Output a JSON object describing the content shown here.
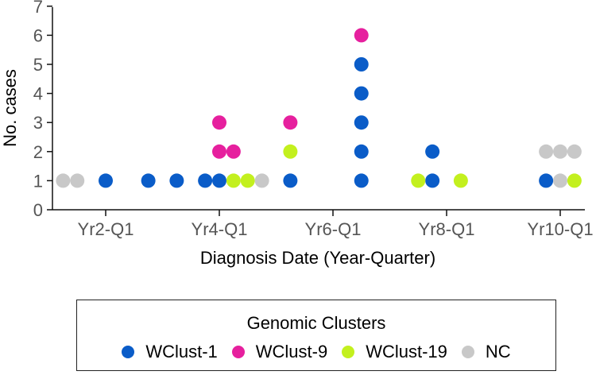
{
  "chart_data": {
    "type": "scatter",
    "subtype": "stacked-dot-plot",
    "title": "",
    "xlabel": "Diagnosis Date (Year-Quarter)",
    "ylabel": "No. cases",
    "ylim": [
      0,
      7
    ],
    "yticks": [
      0,
      1,
      2,
      3,
      4,
      5,
      6,
      7
    ],
    "xticks": [
      "Yr2-Q1",
      "Yr4-Q1",
      "Yr6-Q1",
      "Yr8-Q1",
      "Yr10-Q1"
    ],
    "x_unit": "quarter",
    "grid": false,
    "legend_position": "bottom",
    "legend_title": "Genomic Clusters",
    "series": [
      {
        "name": "WClust-1",
        "color": "#0a5cc8",
        "points": [
          {
            "x": "Yr2-Q1",
            "y": 1
          },
          {
            "x": "Yr2-Q4",
            "y": 1
          },
          {
            "x": "Yr3-Q2",
            "y": 1
          },
          {
            "x": "Yr3-Q4",
            "y": 1
          },
          {
            "x": "Yr4-Q1",
            "y": 1
          },
          {
            "x": "Yr5-Q2",
            "y": 1
          },
          {
            "x": "Yr6-Q3",
            "y": 1
          },
          {
            "x": "Yr6-Q3",
            "y": 2
          },
          {
            "x": "Yr6-Q3",
            "y": 3
          },
          {
            "x": "Yr6-Q3",
            "y": 4
          },
          {
            "x": "Yr6-Q3",
            "y": 5
          },
          {
            "x": "Yr7-Q4",
            "y": 1
          },
          {
            "x": "Yr7-Q4",
            "y": 2
          },
          {
            "x": "Yr9-Q4",
            "y": 1
          }
        ]
      },
      {
        "name": "WClust-9",
        "color": "#e6209e",
        "points": [
          {
            "x": "Yr4-Q1",
            "y": 2
          },
          {
            "x": "Yr4-Q1",
            "y": 3
          },
          {
            "x": "Yr4-Q2",
            "y": 2
          },
          {
            "x": "Yr5-Q2",
            "y": 3
          },
          {
            "x": "Yr6-Q3",
            "y": 6
          }
        ]
      },
      {
        "name": "WClust-19",
        "color": "#c3f01e",
        "points": [
          {
            "x": "Yr4-Q2",
            "y": 1
          },
          {
            "x": "Yr4-Q3",
            "y": 1
          },
          {
            "x": "Yr5-Q2",
            "y": 2
          },
          {
            "x": "Yr7-Q3",
            "y": 1
          },
          {
            "x": "Yr8-Q2",
            "y": 1
          },
          {
            "x": "Yr10-Q2",
            "y": 1
          }
        ]
      },
      {
        "name": "NC",
        "color": "#c8c8c8",
        "points": [
          {
            "x": "Yr1-Q2",
            "y": 1
          },
          {
            "x": "Yr1-Q3",
            "y": 1
          },
          {
            "x": "Yr4-Q4",
            "y": 1
          },
          {
            "x": "Yr9-Q4",
            "y": 2
          },
          {
            "x": "Yr10-Q1",
            "y": 1
          },
          {
            "x": "Yr10-Q1",
            "y": 2
          },
          {
            "x": "Yr10-Q2",
            "y": 2
          }
        ]
      }
    ]
  },
  "legend": {
    "title": "Genomic Clusters",
    "items": [
      {
        "label": "WClust-1",
        "color": "#0a5cc8"
      },
      {
        "label": "WClust-9",
        "color": "#e6209e"
      },
      {
        "label": "WClust-19",
        "color": "#c3f01e"
      },
      {
        "label": "NC",
        "color": "#c8c8c8"
      }
    ]
  }
}
